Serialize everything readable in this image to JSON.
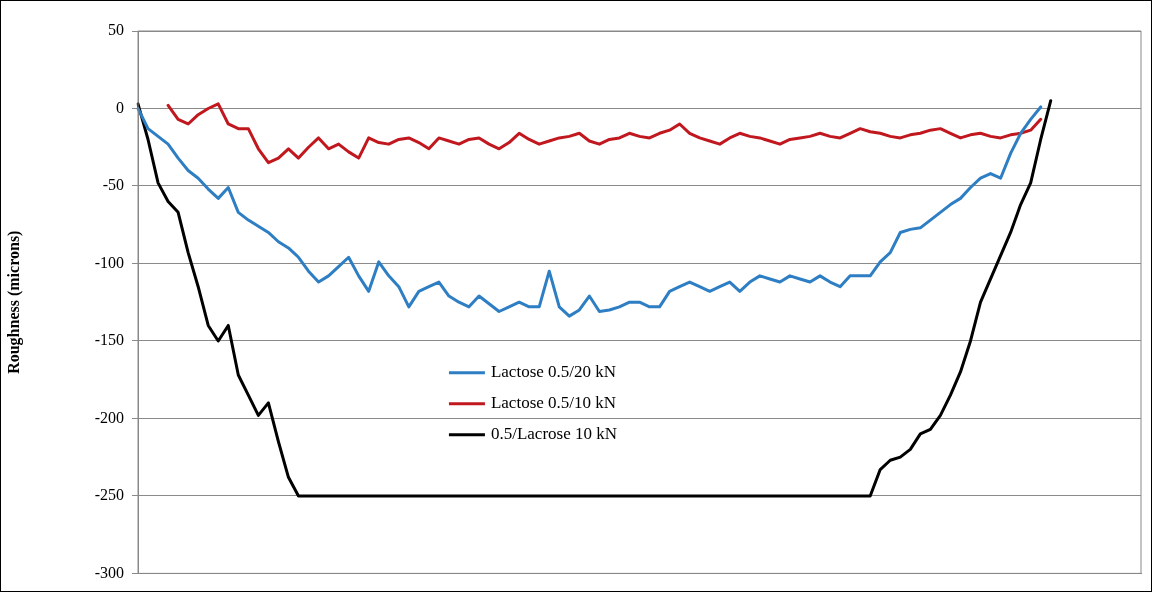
{
  "chart_data": {
    "type": "line",
    "ylabel": "Roughness (microns)",
    "categories": [
      null,
      null,
      null,
      null,
      null,
      null,
      null,
      null,
      null,
      null,
      null,
      null,
      null,
      null,
      null,
      null,
      null,
      null,
      null,
      null,
      null,
      null,
      null,
      null,
      null,
      null,
      null,
      null,
      null,
      null,
      null,
      null,
      null,
      null,
      null,
      null,
      null,
      null,
      null,
      null,
      null,
      null,
      null,
      null,
      null,
      null,
      null,
      null,
      null,
      null,
      null,
      null,
      null,
      null,
      null,
      null,
      null,
      null,
      null,
      null,
      null,
      null,
      null,
      null,
      null,
      null,
      null,
      null,
      null,
      null,
      null,
      null,
      null,
      null,
      null,
      null,
      null,
      null,
      null,
      null,
      null,
      null,
      null,
      null,
      null,
      null,
      null,
      null,
      null,
      null,
      null,
      null,
      null,
      null,
      null,
      null,
      null,
      null,
      null,
      null,
      null
    ],
    "ylim": [
      -300,
      50
    ],
    "yticks": [
      -300,
      -250,
      -200,
      -150,
      -100,
      -50,
      0,
      50
    ],
    "grid": "y",
    "tick_labels": "y",
    "legend": "center",
    "marker": "none",
    "line_style": "solid",
    "series": [
      {
        "name": "Lactose 0.5/20 kN",
        "color": "#2e7ec4",
        "values": [
          0,
          -13,
          -18,
          -23,
          -32,
          -40,
          -45,
          -52,
          -58,
          -51,
          -67,
          -72,
          -76,
          -80,
          -86,
          -90,
          -96,
          -105,
          -112,
          -108,
          -102,
          -96,
          -108,
          -118,
          -99,
          -108,
          -115,
          -128,
          -118,
          -115,
          -112,
          -121,
          -125,
          -128,
          -121,
          -126,
          -131,
          -128,
          -125,
          -128,
          -128,
          -105,
          -128,
          -134,
          -130,
          -121,
          -131,
          -130,
          -128,
          -125,
          -125,
          -128,
          -128,
          -118,
          -115,
          -112,
          -115,
          -118,
          -115,
          -112,
          -118,
          -112,
          -108,
          -110,
          -112,
          -108,
          -110,
          -112,
          -108,
          -112,
          -115,
          -108,
          -108,
          -108,
          -99,
          -93,
          -80,
          -78,
          -77,
          -72,
          -67,
          -62,
          -58,
          -51,
          -45,
          -42,
          -45,
          -29,
          -16,
          -7,
          1,
          null,
          null,
          null,
          null,
          null,
          null,
          null,
          null,
          null,
          null
        ]
      },
      {
        "name": "Lactose 0.5/10 kN",
        "color": "#c0181e",
        "values": [
          null,
          null,
          null,
          2,
          -7,
          -10,
          -4,
          0,
          3,
          -10,
          -13,
          -13,
          -26,
          -35,
          -32,
          -26,
          -32,
          -25,
          -19,
          -26,
          -23,
          -28,
          -32,
          -19,
          -22,
          -23,
          -20,
          -19,
          -22,
          -26,
          -19,
          -21,
          -23,
          -20,
          -19,
          -23,
          -26,
          -22,
          -16,
          -20,
          -23,
          -21,
          -19,
          -18,
          -16,
          -21,
          -23,
          -20,
          -19,
          -16,
          -18,
          -19,
          -16,
          -14,
          -10,
          -16,
          -19,
          -21,
          -23,
          -19,
          -16,
          -18,
          -19,
          -21,
          -23,
          -20,
          -19,
          -18,
          -16,
          -18,
          -19,
          -16,
          -13,
          -15,
          -16,
          -18,
          -19,
          -17,
          -16,
          -14,
          -13,
          -16,
          -19,
          -17,
          -16,
          -18,
          -19,
          -17,
          -16,
          -14,
          -7,
          null,
          null,
          null,
          null,
          null,
          null,
          null,
          null,
          null,
          null
        ]
      },
      {
        "name": "0.5/Lacrose 10 kN",
        "color": "#000000",
        "values": [
          3,
          -20,
          -48,
          -60,
          -67,
          -93,
          -115,
          -140,
          -150,
          -140,
          -172,
          -185,
          -198,
          -190,
          -215,
          -238,
          -250,
          -250,
          -250,
          -250,
          -250,
          -250,
          -250,
          -250,
          -250,
          -250,
          -250,
          -250,
          -250,
          -250,
          -250,
          -250,
          -250,
          -250,
          -250,
          -250,
          -250,
          -250,
          -250,
          -250,
          -250,
          -250,
          -250,
          -250,
          -250,
          -250,
          -250,
          -250,
          -250,
          -250,
          -250,
          -250,
          -250,
          -250,
          -250,
          -250,
          -250,
          -250,
          -250,
          -250,
          -250,
          -250,
          -250,
          -250,
          -250,
          -250,
          -250,
          -250,
          -250,
          -250,
          -250,
          -250,
          -250,
          -250,
          -233,
          -227,
          -225,
          -220,
          -210,
          -207,
          -198,
          -185,
          -170,
          -150,
          -125,
          -110,
          -95,
          -80,
          -62,
          -48,
          -20,
          5,
          null,
          null,
          null,
          null,
          null,
          null,
          null,
          null,
          null
        ]
      }
    ]
  }
}
